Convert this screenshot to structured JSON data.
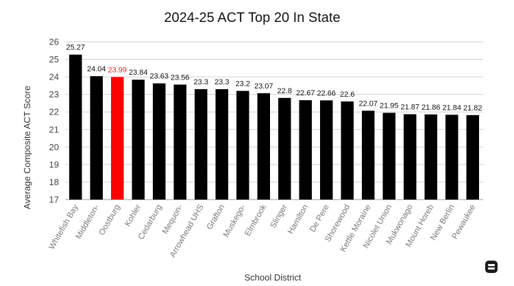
{
  "chart_data": {
    "type": "bar",
    "title": "2024-25 ACT Top 20 In State",
    "xlabel": "School District",
    "ylabel": "Average Composite ACT Score",
    "ylim": [
      17,
      26
    ],
    "yticks": [
      17,
      18,
      19,
      20,
      21,
      22,
      23,
      24,
      25,
      26
    ],
    "grid": true,
    "categories": [
      "Whitefish Bay",
      "Middleton-",
      "Oostburg",
      "Kohler",
      "Cedarburg",
      "Mequon-",
      "Arrowhead UHS",
      "Grafton",
      "Muskego-",
      "Elmbrook",
      "Slinger",
      "Hamilton",
      "De Pere",
      "Shorewood",
      "Kettle Moraine",
      "Nicolet Union",
      "Mukwonago",
      "Mount Horeb",
      "New Berlin",
      "Pewaukee"
    ],
    "values": [
      25.27,
      24.04,
      23.99,
      23.84,
      23.63,
      23.56,
      23.3,
      23.3,
      23.2,
      23.07,
      22.8,
      22.67,
      22.66,
      22.6,
      22.07,
      21.95,
      21.87,
      21.86,
      21.84,
      21.82
    ],
    "value_labels": [
      "25.27",
      "24.04",
      "23.99",
      "23.84",
      "23.63",
      "23.56",
      "23.3",
      "23.3",
      "23.2",
      "23.07",
      "22.8",
      "22.67",
      "22.66",
      "22.6",
      "22.07",
      "21.95",
      "21.87",
      "21.86",
      "21.84",
      "21.82"
    ],
    "highlight_index": 2,
    "colors": {
      "bar": "#000000",
      "highlight": "#ff0000",
      "highlight_label": "#e8211c"
    }
  },
  "icons": {
    "corner": "toggle-icon"
  }
}
